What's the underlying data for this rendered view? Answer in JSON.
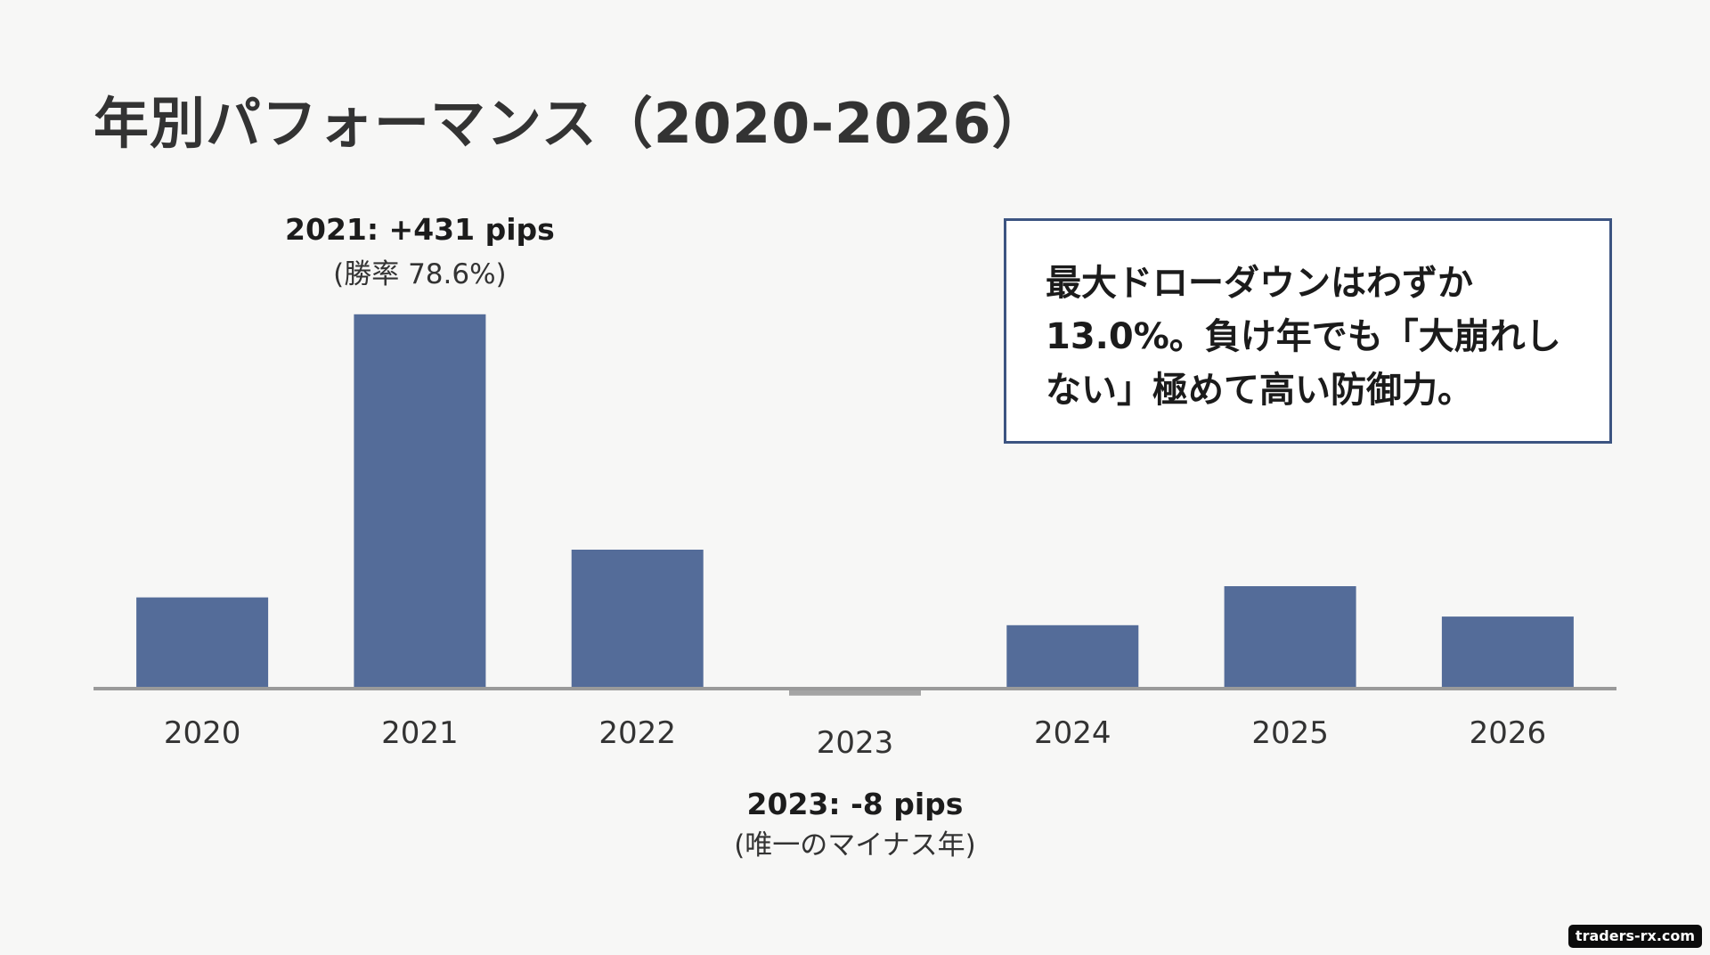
{
  "title": "年別パフォーマンス（2020-2026）",
  "colors": {
    "positive_bar": "#546c99",
    "negative_bar": "#a4a4a4",
    "baseline": "#9a9a9a",
    "callout_border": "#3c5481"
  },
  "chart_data": {
    "type": "bar",
    "title": "年別パフォーマンス（2020-2026）",
    "xlabel": "",
    "ylabel": "",
    "unit": "pips",
    "categories": [
      "2020",
      "2021",
      "2022",
      "2023",
      "2024",
      "2025",
      "2026"
    ],
    "values": [
      105,
      431,
      160,
      -8,
      73,
      118,
      83
    ],
    "ylim": [
      -20,
      460
    ],
    "grid": false,
    "legend": "none",
    "annotations": [
      {
        "category": "2021",
        "text": "2021: +431 pips",
        "subtext": "(勝率 78.6%)",
        "placement": "above"
      },
      {
        "category": "2023",
        "text": "2023: -8 pips",
        "subtext": "(唯一のマイナス年)",
        "placement": "below"
      }
    ]
  },
  "callout": {
    "lines": [
      "最大ドローダウンはわずか",
      "13.0%。負け年でも「大崩れし",
      "ない」極めて高い防御力。"
    ]
  },
  "watermark": "traders-rx.com"
}
